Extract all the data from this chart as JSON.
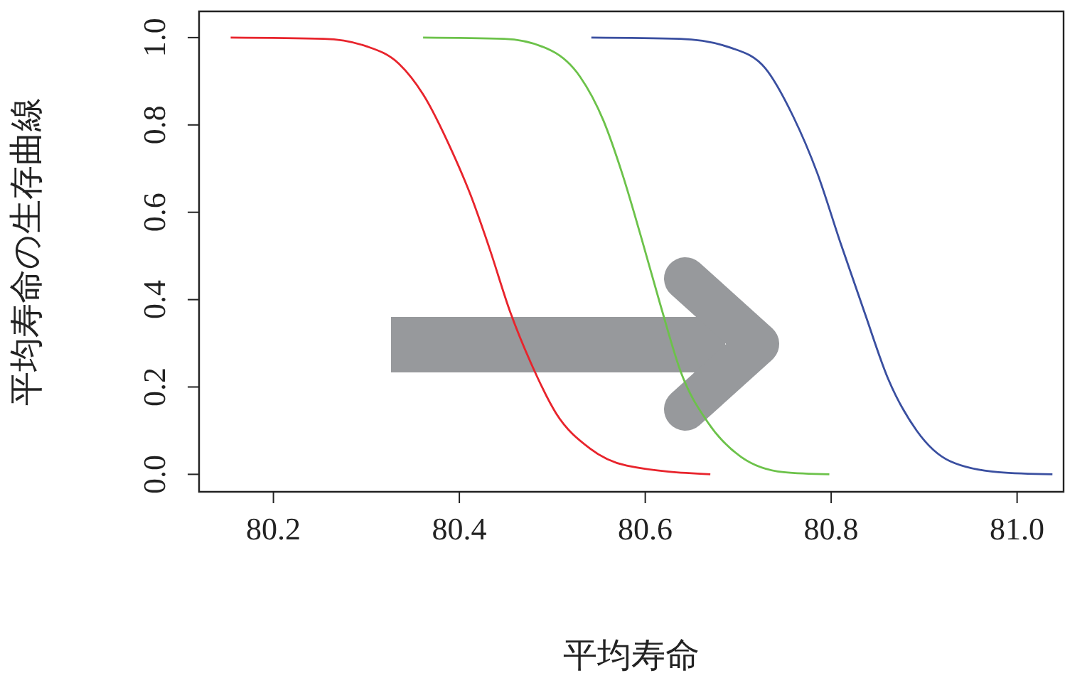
{
  "chart_data": {
    "type": "line",
    "xlabel": "平均寿命",
    "ylabel": "平均寿命の生存曲線",
    "xlim": [
      80.12,
      81.05
    ],
    "ylim": [
      -0.04,
      1.06
    ],
    "xticks": [
      {
        "value": 80.2,
        "label": "80.2"
      },
      {
        "value": 80.4,
        "label": "80.4"
      },
      {
        "value": 80.6,
        "label": "80.6"
      },
      {
        "value": 80.8,
        "label": "80.8"
      },
      {
        "value": 81.0,
        "label": "81.0"
      }
    ],
    "yticks": [
      {
        "value": 0,
        "label": "0.0"
      },
      {
        "value": 0.2,
        "label": "0.2"
      },
      {
        "value": 0.4,
        "label": "0.4"
      },
      {
        "value": 0.6,
        "label": "0.6"
      },
      {
        "value": 0.8,
        "label": "0.8"
      },
      {
        "value": 1.0,
        "label": "1.0"
      }
    ],
    "marker": "none",
    "line_style": "solid",
    "series": [
      {
        "color": "#e8242c",
        "x": [
          80.154,
          80.254,
          80.3,
          80.335,
          80.361,
          80.392,
          80.412,
          80.432,
          80.455,
          80.478,
          80.504,
          80.54,
          80.58,
          80.67
        ],
        "values": [
          1.0,
          0.997,
          0.98,
          0.94,
          0.87,
          0.74,
          0.64,
          0.52,
          0.37,
          0.25,
          0.14,
          0.06,
          0.02,
          0.0
        ]
      },
      {
        "color": "#6cc24a",
        "x": [
          80.361,
          80.448,
          80.499,
          80.53,
          80.555,
          80.575,
          80.596,
          80.616,
          80.639,
          80.667,
          80.703,
          80.749,
          80.798
        ],
        "values": [
          1.0,
          0.997,
          0.97,
          0.91,
          0.81,
          0.69,
          0.54,
          0.39,
          0.23,
          0.12,
          0.04,
          0.005,
          0.0
        ]
      },
      {
        "color": "#3a4fa0",
        "x": [
          80.542,
          80.637,
          80.693,
          80.729,
          80.759,
          80.785,
          80.81,
          80.836,
          80.861,
          80.892,
          80.928,
          80.98,
          81.038
        ],
        "values": [
          1.0,
          0.997,
          0.976,
          0.93,
          0.82,
          0.69,
          0.53,
          0.37,
          0.22,
          0.1,
          0.03,
          0.005,
          0.0
        ]
      }
    ]
  }
}
